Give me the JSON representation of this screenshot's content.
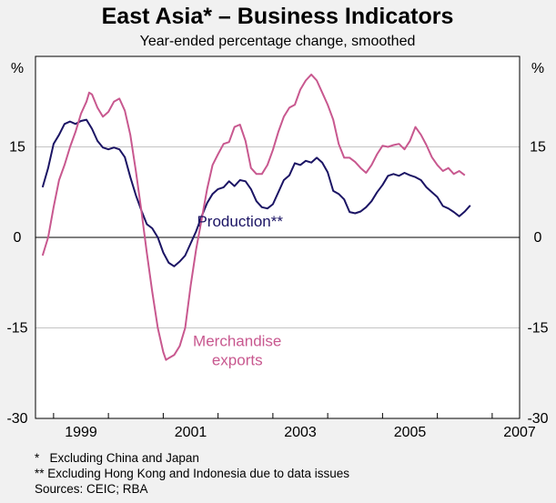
{
  "chart_data": {
    "type": "line",
    "title": "East Asia* – Business Indicators",
    "subtitle": "Year-ended percentage change, smoothed",
    "unit_left": "%",
    "unit_right": "%",
    "ylim": [
      -30,
      30
    ],
    "yticks": [
      -30,
      -15,
      0,
      15
    ],
    "ytick_labels": [
      "-30",
      "-15",
      "0",
      "15"
    ],
    "xlim": [
      1998.67,
      2007.5
    ],
    "xticks": [
      1999,
      2001,
      2003,
      2005,
      2007
    ],
    "xtick_labels": [
      "1999",
      "2001",
      "2003",
      "2005",
      "2007"
    ],
    "series": [
      {
        "name": "Production**",
        "label_lines": [
          "Production**"
        ],
        "color": "#1b1464",
        "points": [
          [
            1998.8,
            8.3
          ],
          [
            1998.9,
            11.5
          ],
          [
            1999.0,
            15.5
          ],
          [
            1999.1,
            17.0
          ],
          [
            1999.2,
            18.8
          ],
          [
            1999.3,
            19.2
          ],
          [
            1999.4,
            18.8
          ],
          [
            1999.5,
            19.3
          ],
          [
            1999.6,
            19.5
          ],
          [
            1999.7,
            18.0
          ],
          [
            1999.8,
            16.0
          ],
          [
            1999.9,
            14.9
          ],
          [
            2000.0,
            14.6
          ],
          [
            2000.1,
            14.9
          ],
          [
            2000.2,
            14.6
          ],
          [
            2000.3,
            13.3
          ],
          [
            2000.4,
            10.0
          ],
          [
            2000.5,
            7.0
          ],
          [
            2000.6,
            4.5
          ],
          [
            2000.7,
            2.2
          ],
          [
            2000.8,
            1.5
          ],
          [
            2000.9,
            0.0
          ],
          [
            2001.0,
            -2.5
          ],
          [
            2001.1,
            -4.2
          ],
          [
            2001.2,
            -4.8
          ],
          [
            2001.3,
            -4.0
          ],
          [
            2001.4,
            -3.0
          ],
          [
            2001.5,
            -1.0
          ],
          [
            2001.6,
            1.0
          ],
          [
            2001.7,
            3.5
          ],
          [
            2001.8,
            5.7
          ],
          [
            2001.9,
            7.2
          ],
          [
            2002.0,
            8.0
          ],
          [
            2002.1,
            8.3
          ],
          [
            2002.2,
            9.3
          ],
          [
            2002.3,
            8.5
          ],
          [
            2002.4,
            9.5
          ],
          [
            2002.5,
            9.3
          ],
          [
            2002.6,
            8.0
          ],
          [
            2002.7,
            6.0
          ],
          [
            2002.8,
            5.0
          ],
          [
            2002.9,
            4.8
          ],
          [
            2003.0,
            5.5
          ],
          [
            2003.1,
            7.5
          ],
          [
            2003.2,
            9.5
          ],
          [
            2003.3,
            10.3
          ],
          [
            2003.4,
            12.3
          ],
          [
            2003.5,
            12.0
          ],
          [
            2003.6,
            12.7
          ],
          [
            2003.7,
            12.4
          ],
          [
            2003.8,
            13.2
          ],
          [
            2003.9,
            12.4
          ],
          [
            2004.0,
            10.8
          ],
          [
            2004.1,
            7.7
          ],
          [
            2004.2,
            7.2
          ],
          [
            2004.3,
            6.3
          ],
          [
            2004.4,
            4.2
          ],
          [
            2004.5,
            4.0
          ],
          [
            2004.6,
            4.3
          ],
          [
            2004.7,
            5.0
          ],
          [
            2004.8,
            6.0
          ],
          [
            2004.9,
            7.5
          ],
          [
            2005.0,
            8.7
          ],
          [
            2005.1,
            10.2
          ],
          [
            2005.2,
            10.5
          ],
          [
            2005.3,
            10.2
          ],
          [
            2005.4,
            10.7
          ],
          [
            2005.5,
            10.3
          ],
          [
            2005.6,
            10.0
          ],
          [
            2005.7,
            9.5
          ],
          [
            2005.8,
            8.3
          ],
          [
            2005.9,
            7.5
          ],
          [
            2006.0,
            6.7
          ],
          [
            2006.1,
            5.2
          ],
          [
            2006.2,
            4.8
          ],
          [
            2006.3,
            4.2
          ],
          [
            2006.4,
            3.5
          ],
          [
            2006.5,
            4.3
          ],
          [
            2006.6,
            5.3
          ]
        ]
      },
      {
        "name": "Merchandise exports",
        "label_lines": [
          "Merchandise",
          "exports"
        ],
        "color": "#c8588f",
        "points": [
          [
            1998.8,
            -3.0
          ],
          [
            1998.9,
            0.0
          ],
          [
            1999.0,
            5.0
          ],
          [
            1999.1,
            9.5
          ],
          [
            1999.2,
            12.0
          ],
          [
            1999.3,
            15.0
          ],
          [
            1999.4,
            17.5
          ],
          [
            1999.5,
            20.5
          ],
          [
            1999.6,
            22.5
          ],
          [
            1999.65,
            24.0
          ],
          [
            1999.7,
            23.7
          ],
          [
            1999.8,
            21.5
          ],
          [
            1999.9,
            20.0
          ],
          [
            2000.0,
            20.8
          ],
          [
            2000.1,
            22.5
          ],
          [
            2000.2,
            23.0
          ],
          [
            2000.3,
            21.0
          ],
          [
            2000.4,
            17.0
          ],
          [
            2000.5,
            11.0
          ],
          [
            2000.6,
            4.5
          ],
          [
            2000.7,
            -2.5
          ],
          [
            2000.8,
            -9.0
          ],
          [
            2000.9,
            -15.0
          ],
          [
            2001.0,
            -19.0
          ],
          [
            2001.05,
            -20.3
          ],
          [
            2001.1,
            -20.0
          ],
          [
            2001.2,
            -19.5
          ],
          [
            2001.3,
            -18.0
          ],
          [
            2001.4,
            -15.0
          ],
          [
            2001.5,
            -8.0
          ],
          [
            2001.6,
            -2.0
          ],
          [
            2001.7,
            3.0
          ],
          [
            2001.8,
            8.0
          ],
          [
            2001.9,
            12.0
          ],
          [
            2002.0,
            13.8
          ],
          [
            2002.1,
            15.5
          ],
          [
            2002.2,
            15.8
          ],
          [
            2002.3,
            18.3
          ],
          [
            2002.4,
            18.7
          ],
          [
            2002.5,
            16.0
          ],
          [
            2002.6,
            11.5
          ],
          [
            2002.7,
            10.5
          ],
          [
            2002.8,
            10.5
          ],
          [
            2002.9,
            12.0
          ],
          [
            2003.0,
            14.5
          ],
          [
            2003.1,
            17.5
          ],
          [
            2003.2,
            20.0
          ],
          [
            2003.3,
            21.5
          ],
          [
            2003.4,
            22.0
          ],
          [
            2003.5,
            24.5
          ],
          [
            2003.6,
            26.0
          ],
          [
            2003.7,
            27.0
          ],
          [
            2003.8,
            26.0
          ],
          [
            2003.9,
            24.0
          ],
          [
            2004.0,
            22.0
          ],
          [
            2004.1,
            19.5
          ],
          [
            2004.2,
            15.5
          ],
          [
            2004.3,
            13.2
          ],
          [
            2004.4,
            13.2
          ],
          [
            2004.5,
            12.5
          ],
          [
            2004.6,
            11.5
          ],
          [
            2004.7,
            10.7
          ],
          [
            2004.8,
            12.0
          ],
          [
            2004.9,
            13.8
          ],
          [
            2005.0,
            15.2
          ],
          [
            2005.1,
            15.0
          ],
          [
            2005.2,
            15.3
          ],
          [
            2005.3,
            15.5
          ],
          [
            2005.4,
            14.6
          ],
          [
            2005.5,
            16.0
          ],
          [
            2005.6,
            18.3
          ],
          [
            2005.7,
            17.0
          ],
          [
            2005.8,
            15.3
          ],
          [
            2005.9,
            13.3
          ],
          [
            2006.0,
            12.0
          ],
          [
            2006.1,
            11.0
          ],
          [
            2006.2,
            11.5
          ],
          [
            2006.3,
            10.5
          ],
          [
            2006.4,
            11.0
          ],
          [
            2006.5,
            10.3
          ]
        ]
      }
    ],
    "footnotes": [
      "*   Excluding China and Japan",
      "** Excluding Hong Kong and Indonesia due to data issues",
      "Sources: CEIC; RBA"
    ]
  }
}
